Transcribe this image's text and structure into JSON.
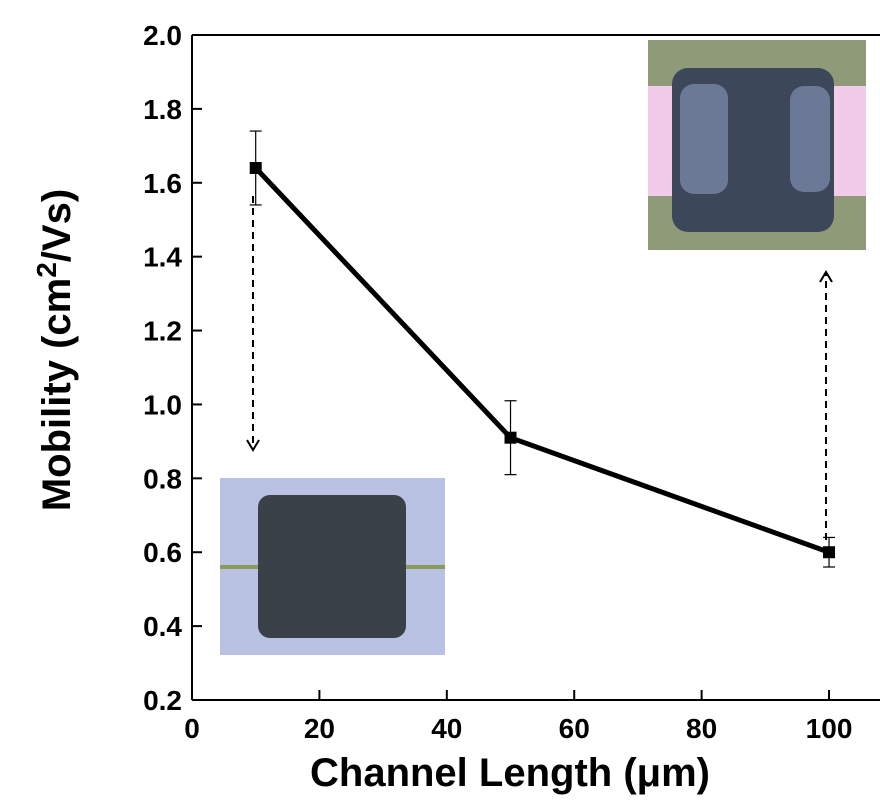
{
  "chart_data": {
    "type": "line",
    "x_label": "Channel Length (μm)",
    "y_label": [
      "Mobility (cm",
      "2",
      "/Vs)"
    ],
    "x": [
      10,
      50,
      100
    ],
    "series": [
      {
        "color": "#000000",
        "values": [
          1.64,
          0.91,
          0.6
        ],
        "errors": [
          0.1,
          0.1,
          0.04
        ]
      }
    ],
    "xlim": [
      0,
      108
    ],
    "ylim": [
      0.2,
      2.0
    ],
    "xticks": [
      0,
      20,
      40,
      60,
      80,
      100
    ],
    "yticks": [
      0.2,
      0.4,
      0.6,
      0.8,
      {
        "value": 1,
        "label": "1.0"
      },
      1.2,
      1.4,
      1.6,
      1.8,
      {
        "value": 2,
        "label": "2.0"
      }
    ]
  }
}
